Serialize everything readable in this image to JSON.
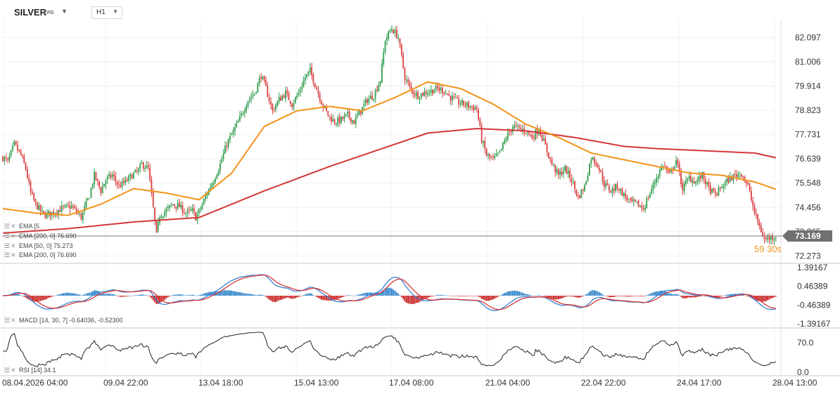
{
  "header": {
    "symbol": "SILVER",
    "symbol_type": "CFD",
    "interval": "H1"
  },
  "indicators": {
    "ema_faded": "EMA [50, 0] 75.273",
    "ema_faded_short": "EMA [5",
    "ema_faded_tail": "73",
    "ema200_faded": "EMA [200, 0] 76.690",
    "ema50": "EMA [50, 0] 75.273",
    "ema200": "EMA [200, 0] 76.690",
    "macd": "MACD [14, 30, 7] -0.64036, -0.52300",
    "rsi": "RSI [14] 34.1"
  },
  "countdown": "59",
  "countdown_sec": "30s",
  "price_axis": {
    "labels": [
      "82.097",
      "81.006",
      "79.914",
      "78.823",
      "77.731",
      "76.639",
      "75.548",
      "74.456",
      "73.365",
      "72.273"
    ],
    "current": "73.169"
  },
  "macd_axis": {
    "labels": [
      "1.39167",
      "0.46389",
      "-0.46389",
      "-1.39167"
    ]
  },
  "rsi_axis": {
    "labels": [
      "70.0",
      "0.0"
    ]
  },
  "time_axis": {
    "labels": [
      "08.04.2026 04:00",
      "09.04 22:00",
      "13.04 18:00",
      "15.04 13:00",
      "17.04 08:00",
      "21.04 04:00",
      "22.04 22:00",
      "24.04 17:00",
      "28.04 13:00"
    ]
  },
  "colors": {
    "up": "#2d9c4a",
    "down": "#d93c3c",
    "ema50": "#f29318",
    "ema200": "#d53636",
    "macd": "#3a7fd4",
    "signal": "#d53636",
    "hist_up": "#2b82c9",
    "hist_down": "#c81e1e",
    "rsi": "#222222",
    "price_tag": "#707070"
  },
  "chart_data": {
    "type": "candlestick",
    "title": "SILVER",
    "interval": "H1",
    "y_range": [
      72.0,
      82.9
    ],
    "anchor_price": [
      [
        0,
        76.7
      ],
      [
        3,
        76.5
      ],
      [
        7,
        77.3
      ],
      [
        11,
        76.8
      ],
      [
        14,
        76.2
      ],
      [
        17,
        75.1
      ],
      [
        20,
        74.6
      ],
      [
        25,
        74.1
      ],
      [
        30,
        74.2
      ],
      [
        36,
        74.4
      ],
      [
        42,
        74.5
      ],
      [
        48,
        74.0
      ],
      [
        53,
        75.0
      ],
      [
        56,
        75.9
      ],
      [
        60,
        75.2
      ],
      [
        63,
        75.7
      ],
      [
        67,
        75.9
      ],
      [
        71,
        75.4
      ],
      [
        75,
        75.6
      ],
      [
        79,
        75.9
      ],
      [
        83,
        76.1
      ],
      [
        85,
        76.4
      ],
      [
        87,
        76.3
      ],
      [
        89,
        76.2
      ],
      [
        94,
        73.2
      ],
      [
        96,
        74.1
      ],
      [
        100,
        74.3
      ],
      [
        104,
        74.6
      ],
      [
        108,
        74.5
      ],
      [
        112,
        74.2
      ],
      [
        116,
        74.3
      ],
      [
        118,
        74.0
      ],
      [
        121,
        74.4
      ],
      [
        125,
        75.1
      ],
      [
        129,
        75.7
      ],
      [
        133,
        76.4
      ],
      [
        137,
        77.3
      ],
      [
        142,
        78.0
      ],
      [
        146,
        78.6
      ],
      [
        150,
        79.3
      ],
      [
        154,
        79.6
      ],
      [
        158,
        80.4
      ],
      [
        161,
        79.8
      ],
      [
        165,
        78.8
      ],
      [
        169,
        79.3
      ],
      [
        173,
        79.6
      ],
      [
        177,
        79.1
      ],
      [
        181,
        79.6
      ],
      [
        185,
        80.3
      ],
      [
        188,
        80.6
      ],
      [
        191,
        80.0
      ],
      [
        195,
        79.2
      ],
      [
        199,
        78.6
      ],
      [
        203,
        78.3
      ],
      [
        207,
        78.4
      ],
      [
        211,
        78.6
      ],
      [
        215,
        78.3
      ],
      [
        219,
        78.8
      ],
      [
        223,
        79.3
      ],
      [
        227,
        79.5
      ],
      [
        231,
        80.2
      ],
      [
        234,
        82.0
      ],
      [
        238,
        82.5
      ],
      [
        242,
        82.1
      ],
      [
        246,
        80.3
      ],
      [
        250,
        79.7
      ],
      [
        254,
        79.5
      ],
      [
        258,
        79.6
      ],
      [
        262,
        79.7
      ],
      [
        266,
        79.8
      ],
      [
        270,
        79.7
      ],
      [
        274,
        79.4
      ],
      [
        278,
        79.2
      ],
      [
        282,
        79.1
      ],
      [
        286,
        79.0
      ],
      [
        290,
        78.9
      ],
      [
        293,
        77.5
      ],
      [
        296,
        76.8
      ],
      [
        300,
        76.6
      ],
      [
        304,
        76.9
      ],
      [
        308,
        77.6
      ],
      [
        312,
        78.1
      ],
      [
        316,
        78.0
      ],
      [
        320,
        77.9
      ],
      [
        324,
        77.6
      ],
      [
        328,
        78.0
      ],
      [
        332,
        77.2
      ],
      [
        336,
        76.4
      ],
      [
        340,
        75.9
      ],
      [
        344,
        76.2
      ],
      [
        348,
        75.7
      ],
      [
        352,
        74.9
      ],
      [
        356,
        75.4
      ],
      [
        360,
        76.7
      ],
      [
        364,
        76.4
      ],
      [
        368,
        75.5
      ],
      [
        372,
        75.2
      ],
      [
        376,
        75.4
      ],
      [
        380,
        75.0
      ],
      [
        384,
        74.7
      ],
      [
        388,
        74.6
      ],
      [
        392,
        74.4
      ],
      [
        396,
        75.1
      ],
      [
        400,
        75.8
      ],
      [
        404,
        76.4
      ],
      [
        408,
        75.9
      ],
      [
        412,
        76.6
      ],
      [
        416,
        75.3
      ],
      [
        420,
        75.8
      ],
      [
        424,
        75.6
      ],
      [
        428,
        75.9
      ],
      [
        432,
        75.3
      ],
      [
        436,
        75.0
      ],
      [
        440,
        75.4
      ],
      [
        444,
        75.7
      ],
      [
        448,
        75.9
      ],
      [
        452,
        76.0
      ],
      [
        456,
        75.4
      ],
      [
        460,
        74.2
      ],
      [
        463,
        73.6
      ],
      [
        466,
        73.0
      ],
      [
        470,
        73.1
      ],
      [
        473,
        73.17
      ]
    ],
    "ema50_pts": [
      [
        0,
        74.4
      ],
      [
        20,
        74.2
      ],
      [
        40,
        74.1
      ],
      [
        60,
        74.6
      ],
      [
        80,
        75.3
      ],
      [
        100,
        75.1
      ],
      [
        120,
        74.8
      ],
      [
        140,
        76.0
      ],
      [
        160,
        78.1
      ],
      [
        180,
        78.8
      ],
      [
        200,
        79.0
      ],
      [
        220,
        78.8
      ],
      [
        240,
        79.4
      ],
      [
        260,
        80.1
      ],
      [
        280,
        79.8
      ],
      [
        300,
        79.1
      ],
      [
        320,
        78.2
      ],
      [
        340,
        77.6
      ],
      [
        360,
        76.9
      ],
      [
        380,
        76.6
      ],
      [
        400,
        76.3
      ],
      [
        420,
        76.0
      ],
      [
        440,
        75.9
      ],
      [
        460,
        75.6
      ],
      [
        473,
        75.273
      ]
    ],
    "ema200_pts": [
      [
        0,
        73.3
      ],
      [
        40,
        73.5
      ],
      [
        80,
        73.8
      ],
      [
        120,
        74.0
      ],
      [
        160,
        75.2
      ],
      [
        200,
        76.3
      ],
      [
        240,
        77.3
      ],
      [
        260,
        77.8
      ],
      [
        290,
        78.0
      ],
      [
        320,
        77.9
      ],
      [
        350,
        77.6
      ],
      [
        380,
        77.2
      ],
      [
        400,
        77.1
      ],
      [
        430,
        77.0
      ],
      [
        460,
        76.9
      ],
      [
        473,
        76.69
      ]
    ],
    "macd_line": {
      "last": -0.64036
    },
    "signal_line": {
      "last": -0.523
    },
    "rsi_last": 34.1,
    "rsi_levels": [
      70.0,
      0.0
    ],
    "n_bars": 474
  }
}
